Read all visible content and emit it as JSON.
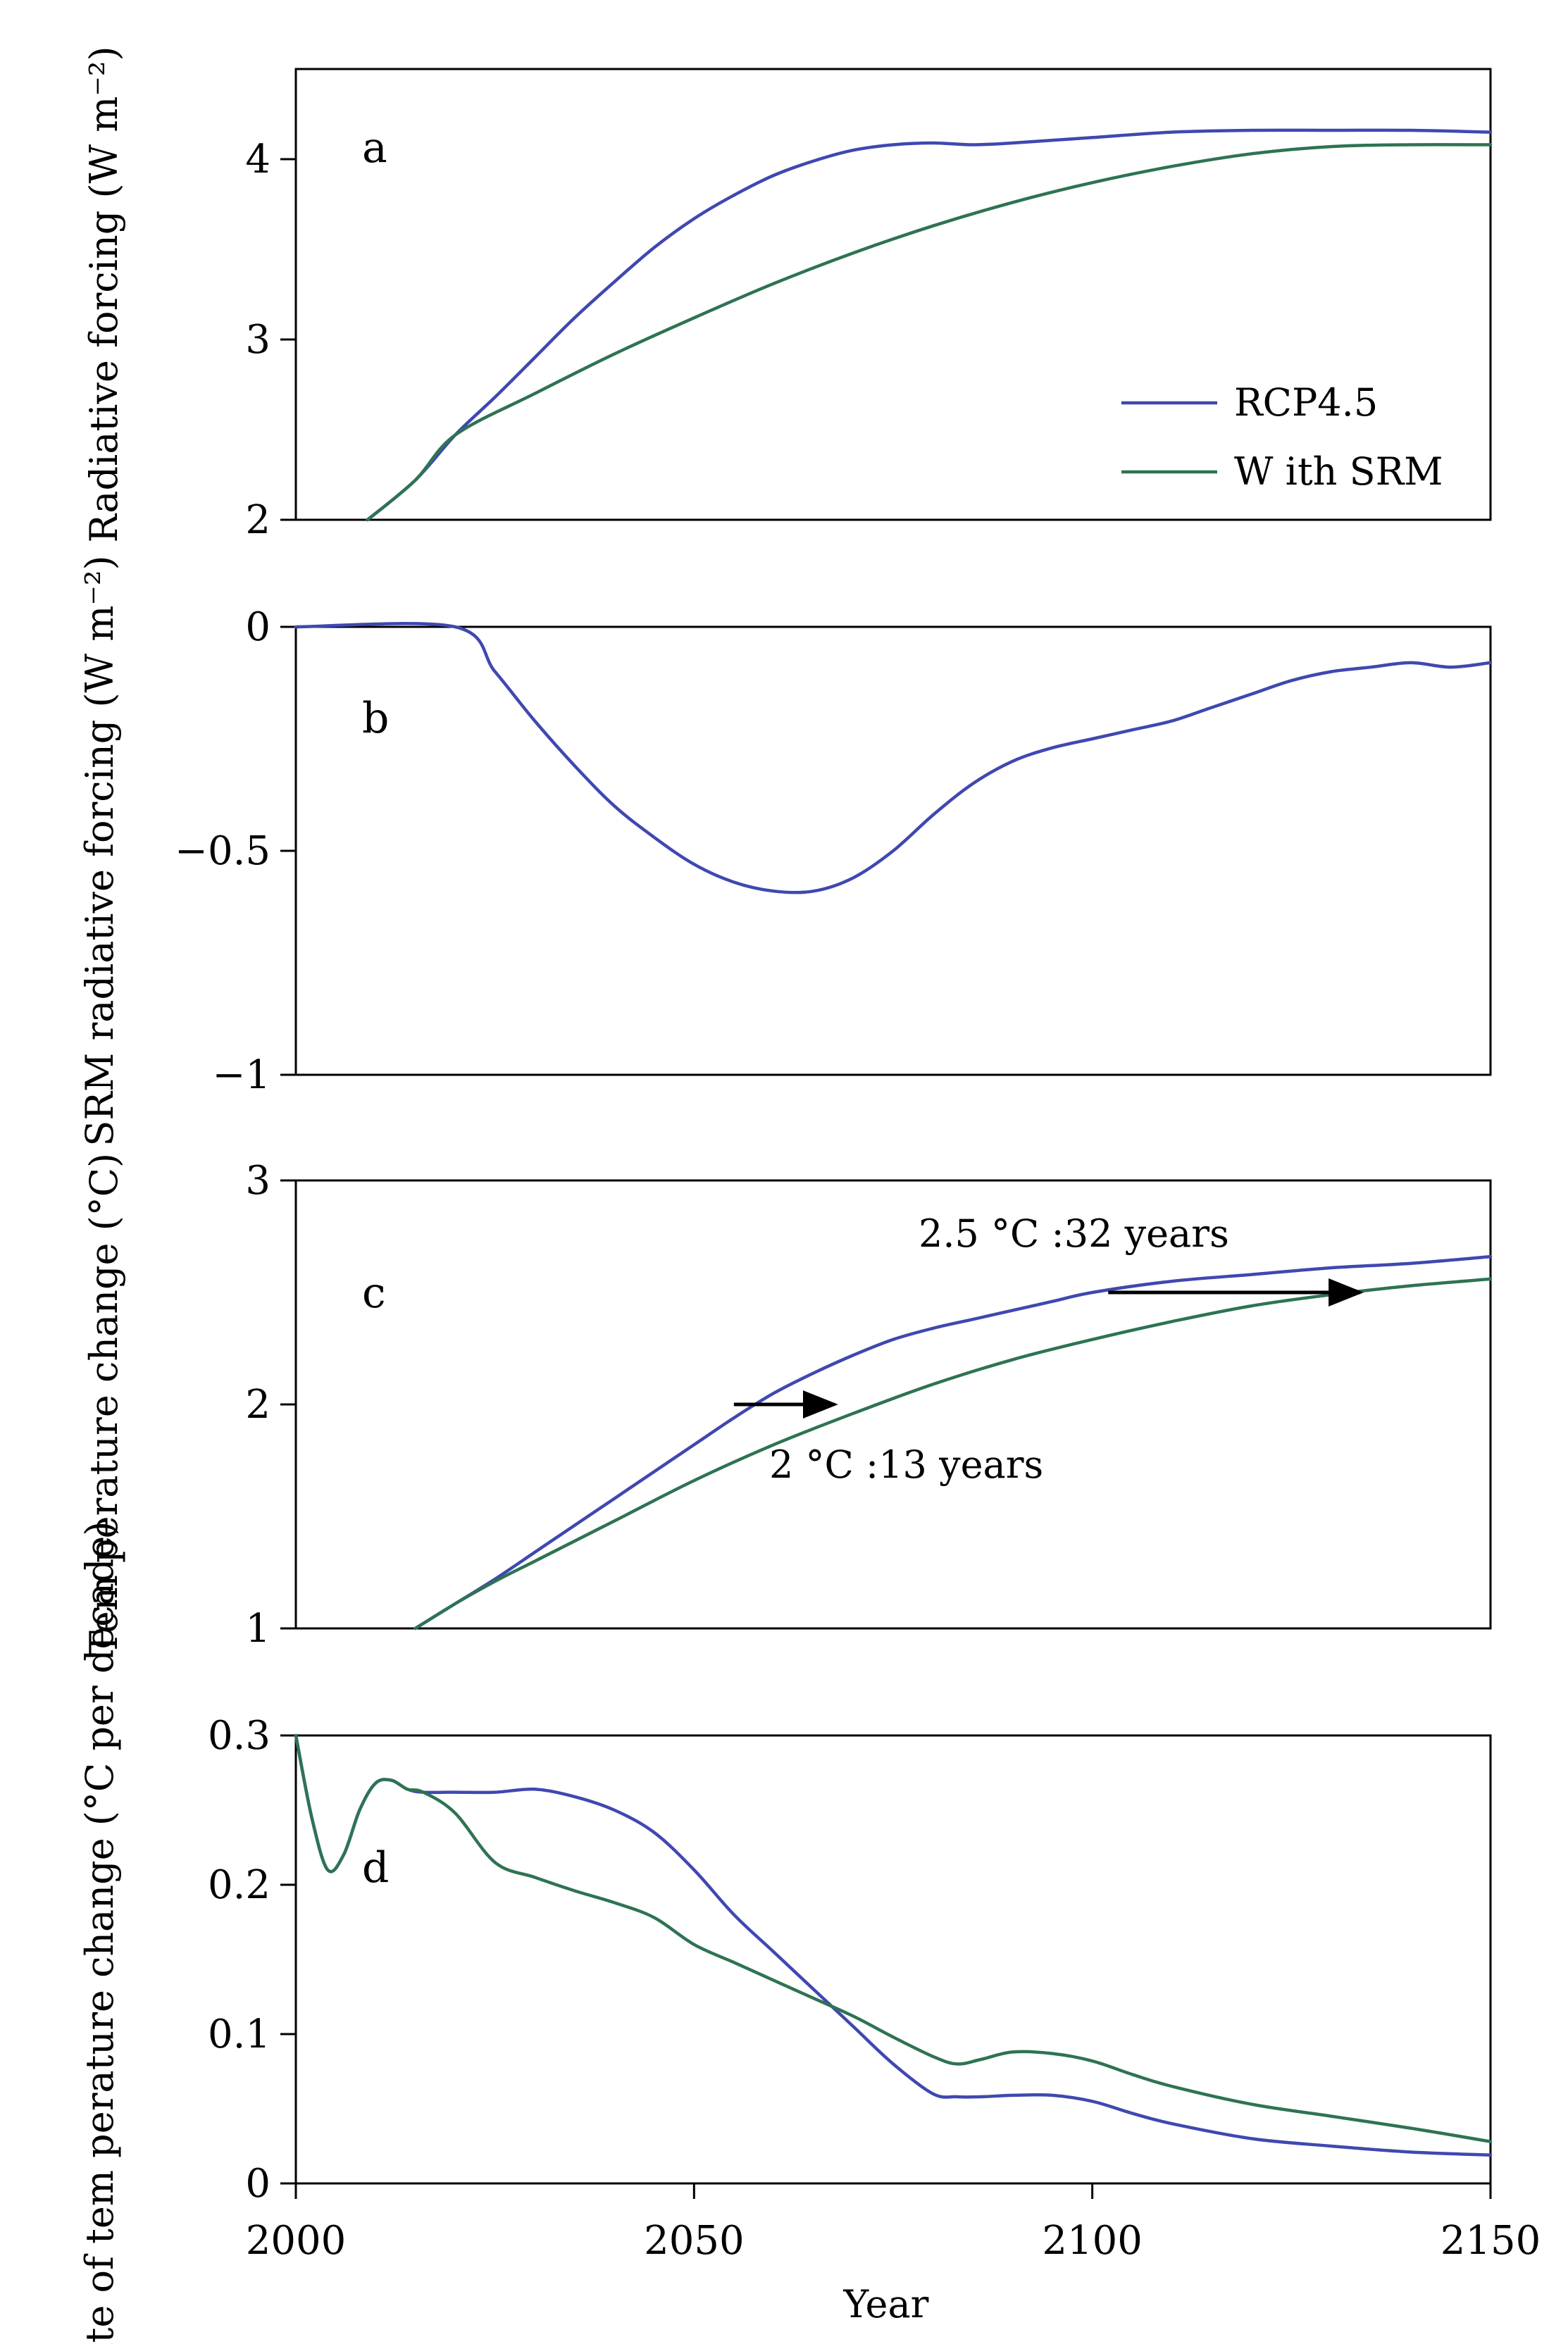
{
  "colors": {
    "rcp": "#3f48b0",
    "srm": "#2e7353",
    "axis": "#000000"
  },
  "xaxis": {
    "label": "Year",
    "range": [
      2000,
      2150
    ],
    "ticks": [
      2000,
      2050,
      2100,
      2150
    ],
    "tick_labels": [
      "2000",
      "2050",
      "2100",
      "2150"
    ]
  },
  "legend": {
    "items": [
      {
        "label": "RCP4.5",
        "color": "#3f48b0"
      },
      {
        "label": "W ith SRM",
        "color": "#2e7353"
      }
    ]
  },
  "chart_data": [
    {
      "panel": "a",
      "type": "line",
      "ylabel": "Radiative forcing (W m⁻²)",
      "ylim": [
        2,
        4.5
      ],
      "yticks": [
        2,
        3,
        4
      ],
      "ytick_labels": [
        "2",
        "3",
        "4"
      ],
      "series": [
        {
          "name": "RCP4.5",
          "x": [
            2009,
            2015,
            2020,
            2025,
            2030,
            2035,
            2040,
            2045,
            2050,
            2055,
            2060,
            2065,
            2070,
            2075,
            2080,
            2085,
            2090,
            2100,
            2110,
            2120,
            2130,
            2140,
            2150
          ],
          "values": [
            2.0,
            2.22,
            2.47,
            2.68,
            2.9,
            3.12,
            3.32,
            3.51,
            3.67,
            3.8,
            3.91,
            3.99,
            4.05,
            4.08,
            4.09,
            4.08,
            4.09,
            4.12,
            4.15,
            4.16,
            4.16,
            4.16,
            4.15
          ]
        },
        {
          "name": "W ith SRM",
          "x": [
            2009,
            2015,
            2020,
            2030,
            2040,
            2050,
            2060,
            2070,
            2080,
            2090,
            2100,
            2110,
            2120,
            2130,
            2140,
            2150
          ],
          "values": [
            2.0,
            2.22,
            2.47,
            2.7,
            2.92,
            3.12,
            3.31,
            3.48,
            3.63,
            3.76,
            3.87,
            3.96,
            4.03,
            4.07,
            4.08,
            4.08
          ]
        }
      ]
    },
    {
      "panel": "b",
      "type": "line",
      "ylabel": "SRM radiative forcing (W m⁻²)",
      "ylim": [
        -1,
        0
      ],
      "yticks": [
        -1,
        -0.5,
        0
      ],
      "ytick_labels": [
        "−1",
        "−0.5",
        "0"
      ],
      "series": [
        {
          "name": "SRM",
          "x": [
            2000,
            2020,
            2025,
            2030,
            2035,
            2040,
            2045,
            2050,
            2055,
            2060,
            2065,
            2070,
            2075,
            2080,
            2085,
            2090,
            2095,
            2100,
            2105,
            2110,
            2115,
            2120,
            2125,
            2130,
            2135,
            2140,
            2145,
            2150
          ],
          "values": [
            0,
            0,
            -0.1,
            -0.21,
            -0.31,
            -0.4,
            -0.47,
            -0.53,
            -0.57,
            -0.59,
            -0.59,
            -0.56,
            -0.5,
            -0.42,
            -0.35,
            -0.3,
            -0.27,
            -0.25,
            -0.23,
            -0.21,
            -0.18,
            -0.15,
            -0.12,
            -0.1,
            -0.09,
            -0.08,
            -0.09,
            -0.08
          ]
        }
      ]
    },
    {
      "panel": "c",
      "type": "line",
      "ylabel": "Tem perature change (°C)",
      "ylim": [
        1,
        3
      ],
      "yticks": [
        1,
        2,
        3
      ],
      "ytick_labels": [
        "1",
        "2",
        "3"
      ],
      "series": [
        {
          "name": "RCP4.5",
          "x": [
            2015,
            2020,
            2025,
            2030,
            2035,
            2040,
            2045,
            2050,
            2055,
            2060,
            2065,
            2070,
            2075,
            2080,
            2085,
            2090,
            2095,
            2100,
            2110,
            2120,
            2130,
            2140,
            2150
          ],
          "values": [
            1.0,
            1.11,
            1.22,
            1.34,
            1.46,
            1.58,
            1.7,
            1.82,
            1.94,
            2.05,
            2.14,
            2.22,
            2.29,
            2.34,
            2.38,
            2.42,
            2.46,
            2.5,
            2.55,
            2.58,
            2.61,
            2.63,
            2.66
          ]
        },
        {
          "name": "W ith SRM",
          "x": [
            2015,
            2020,
            2025,
            2030,
            2040,
            2050,
            2060,
            2070,
            2080,
            2090,
            2100,
            2110,
            2120,
            2130,
            2140,
            2150
          ],
          "values": [
            1.0,
            1.11,
            1.21,
            1.3,
            1.48,
            1.66,
            1.82,
            1.96,
            2.09,
            2.2,
            2.29,
            2.37,
            2.44,
            2.49,
            2.53,
            2.56
          ]
        }
      ],
      "annotations": [
        {
          "text": "2.5 °C :32 years",
          "arrow_from_year": 2102,
          "arrow_to_year": 2134,
          "at_value": 2.5
        },
        {
          "text": "2 °C :13 years",
          "arrow_from_year": 2055,
          "arrow_to_year": 2068,
          "at_value": 2.0
        }
      ]
    },
    {
      "panel": "d",
      "type": "line",
      "ylabel": "Rate of tem perature change (°C per decade)",
      "ylim": [
        0,
        0.3
      ],
      "yticks": [
        0,
        0.1,
        0.2,
        0.3
      ],
      "ytick_labels": [
        "0",
        "0.1",
        "0.2",
        "0.3"
      ],
      "series": [
        {
          "name": "RCP4.5",
          "x": [
            2000,
            2002,
            2004,
            2006,
            2008,
            2010,
            2012,
            2014,
            2016,
            2020,
            2025,
            2030,
            2035,
            2040,
            2045,
            2050,
            2055,
            2060,
            2065,
            2070,
            2075,
            2080,
            2083,
            2086,
            2090,
            2095,
            2100,
            2105,
            2110,
            2120,
            2130,
            2140,
            2150
          ],
          "values": [
            0.3,
            0.245,
            0.21,
            0.22,
            0.25,
            0.268,
            0.27,
            0.264,
            0.262,
            0.262,
            0.262,
            0.264,
            0.259,
            0.25,
            0.235,
            0.21,
            0.18,
            0.155,
            0.13,
            0.105,
            0.08,
            0.06,
            0.058,
            0.058,
            0.059,
            0.059,
            0.055,
            0.047,
            0.04,
            0.03,
            0.025,
            0.021,
            0.019
          ]
        },
        {
          "name": "W ith SRM",
          "x": [
            2000,
            2002,
            2004,
            2006,
            2008,
            2010,
            2012,
            2014,
            2016,
            2020,
            2025,
            2030,
            2035,
            2040,
            2045,
            2050,
            2055,
            2060,
            2065,
            2070,
            2075,
            2080,
            2083,
            2086,
            2090,
            2095,
            2100,
            2105,
            2110,
            2120,
            2130,
            2140,
            2150
          ],
          "values": [
            0.3,
            0.245,
            0.21,
            0.22,
            0.25,
            0.268,
            0.27,
            0.264,
            0.262,
            0.248,
            0.215,
            0.205,
            0.196,
            0.188,
            0.178,
            0.16,
            0.148,
            0.136,
            0.124,
            0.112,
            0.098,
            0.085,
            0.08,
            0.083,
            0.088,
            0.087,
            0.082,
            0.073,
            0.065,
            0.053,
            0.045,
            0.037,
            0.028
          ]
        }
      ]
    }
  ]
}
